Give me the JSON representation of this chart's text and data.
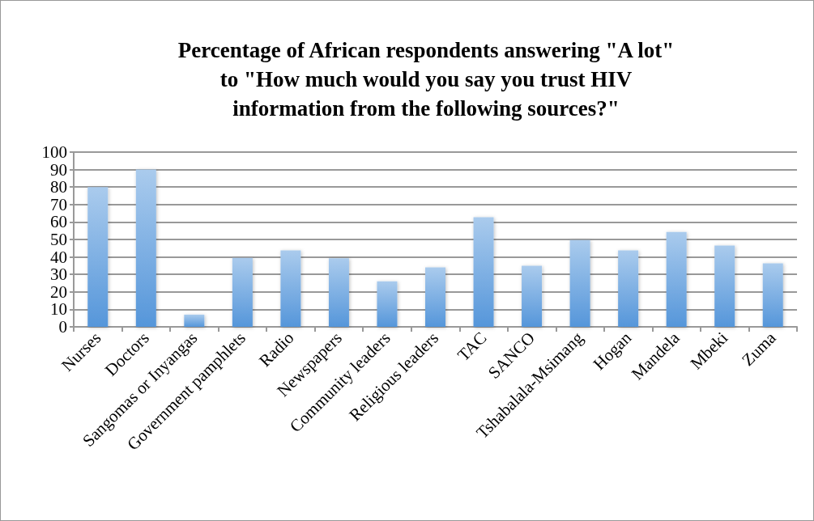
{
  "chart_data": {
    "type": "bar",
    "title": "Percentage of African respondents answering \"A lot\"\nto \"How much would you say you trust HIV\ninformation from the following sources?\"",
    "categories": [
      "Nurses",
      "Doctors",
      "Sangomas or Inyangas",
      "Government pamphlets",
      "Radio",
      "Newspapers",
      "Community leaders",
      "Religious leaders",
      "TAC",
      "SANCO",
      "Tshabalala-Msimang",
      "Hogan",
      "Mandela",
      "Mbeki",
      "Zuma"
    ],
    "values": [
      80,
      90,
      7,
      39.5,
      43.7,
      39.2,
      26,
      34,
      62.7,
      35,
      49.7,
      43.7,
      54.3,
      46.5,
      36.3
    ],
    "color": "#5596da",
    "ylim": [
      0,
      100
    ],
    "yticks": [
      0,
      10,
      20,
      30,
      40,
      50,
      60,
      70,
      80,
      90,
      100
    ],
    "grid": "y"
  }
}
